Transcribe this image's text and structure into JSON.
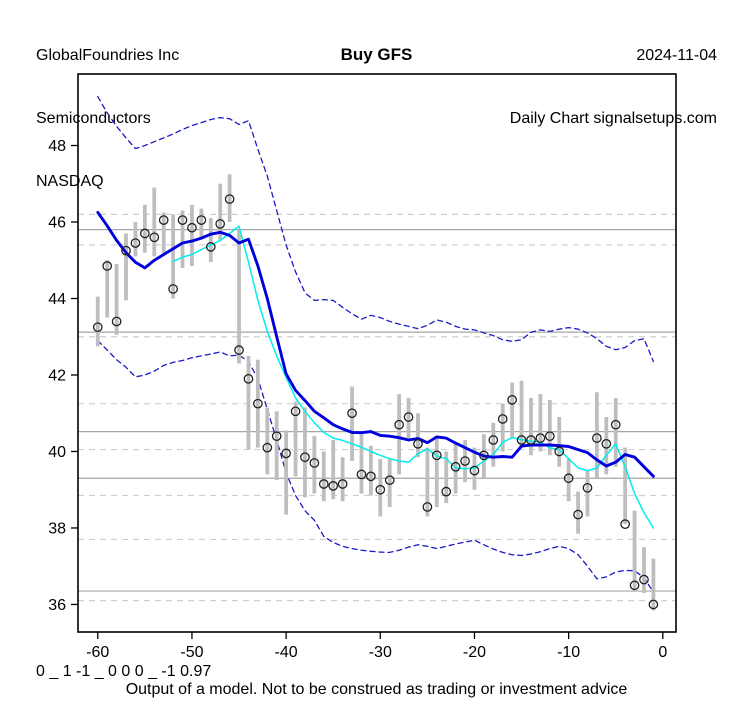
{
  "header": {
    "company": "GlobalFoundries Inc",
    "sector": "Semiconductors",
    "exchange": "NASDAQ",
    "date": "2024-11-04",
    "chart_label": "Daily Chart signalsetups.com"
  },
  "title": "Buy GFS",
  "footer": {
    "model_output": "0 _ 1 -1 _ 0 0 0 _ -1 0.97",
    "disclaimer": "Output of a model. Not to be construed as trading or investment advice"
  },
  "colors": {
    "bar": "#bebebe",
    "marker_ring": "#1f1f1f",
    "slow_ma": "#0000dd",
    "fast_ma": "#00eeee",
    "band": "#1b1bc4",
    "grid_solid": "#a6a6a6",
    "grid_dashed": "#cfcfcf",
    "frame": "#000000",
    "text": "#000000"
  },
  "chart_data": {
    "type": "bar",
    "subtype": "high-low price bars with close markers, moving averages and envelope bands",
    "title": "Buy GFS",
    "xlabel": "",
    "ylabel": "",
    "x_axis": {
      "min": -62.1,
      "max": 1.4,
      "ticks": [
        -60,
        -50,
        -40,
        -30,
        -20,
        -10,
        0
      ]
    },
    "y_axis": {
      "min": 35.28,
      "max": 49.87,
      "ticks": [
        36,
        38,
        40,
        42,
        44,
        46,
        48
      ]
    },
    "levels": {
      "solid": [
        45.8,
        43.12,
        40.52,
        39.3,
        36.35
      ],
      "dashed": [
        46.2,
        45.4,
        43.0,
        41.25,
        40.05,
        38.85,
        37.7,
        36.1
      ]
    },
    "bars": {
      "t0": -60,
      "high": [
        44.05,
        45.0,
        44.9,
        45.7,
        46.0,
        46.45,
        46.9,
        46.25,
        46.2,
        46.3,
        46.45,
        46.35,
        46.1,
        47.0,
        47.25,
        45.8,
        42.5,
        42.4,
        41.15,
        41.05,
        40.55,
        41.3,
        41.15,
        40.4,
        40.0,
        40.3,
        39.85,
        41.7,
        40.45,
        40.15,
        39.8,
        39.8,
        41.5,
        41.4,
        41.0,
        40.1,
        40.35,
        40.0,
        40.2,
        40.3,
        40.1,
        40.45,
        40.75,
        41.25,
        41.8,
        41.85,
        41.4,
        41.5,
        41.35,
        40.9,
        39.8,
        38.95,
        39.5,
        41.55,
        40.9,
        41.4,
        40.1,
        38.45,
        37.5,
        37.2
      ],
      "low": [
        42.75,
        43.5,
        43.05,
        43.95,
        45.1,
        45.2,
        45.1,
        45.2,
        44.0,
        44.8,
        44.85,
        45.55,
        44.95,
        45.5,
        46.0,
        42.3,
        40.05,
        40.1,
        39.4,
        39.25,
        38.35,
        39.35,
        38.8,
        38.9,
        38.7,
        38.75,
        38.7,
        39.75,
        38.9,
        38.85,
        38.3,
        38.55,
        39.4,
        40.3,
        39.85,
        38.3,
        38.55,
        38.65,
        38.9,
        39.2,
        39.0,
        39.3,
        39.6,
        40.0,
        40.35,
        40.1,
        39.9,
        40.0,
        39.9,
        39.6,
        38.7,
        37.85,
        38.3,
        39.3,
        39.4,
        39.6,
        38.1,
        36.4,
        36.3,
        35.85
      ],
      "close": [
        43.25,
        44.85,
        43.4,
        45.25,
        45.45,
        45.7,
        45.6,
        46.05,
        44.25,
        46.05,
        45.85,
        46.05,
        45.35,
        45.95,
        46.6,
        42.65,
        41.9,
        41.25,
        40.1,
        40.4,
        39.95,
        41.05,
        39.85,
        39.7,
        39.15,
        39.1,
        39.15,
        41.0,
        39.4,
        39.35,
        39.0,
        39.25,
        40.7,
        40.9,
        40.2,
        38.55,
        39.9,
        38.95,
        39.6,
        39.75,
        39.5,
        39.9,
        40.3,
        40.85,
        41.35,
        40.3,
        40.3,
        40.35,
        40.4,
        40.0,
        39.3,
        38.35,
        39.05,
        40.35,
        40.2,
        40.7,
        38.1,
        36.5,
        36.65,
        36.0
      ]
    },
    "series": [
      {
        "name": "upper-band",
        "style": "dashed",
        "t0": -60,
        "values": [
          49.28,
          48.85,
          48.5,
          48.2,
          47.92,
          48.0,
          48.1,
          48.2,
          48.3,
          48.42,
          48.52,
          48.6,
          48.68,
          48.73,
          48.7,
          48.55,
          48.65,
          47.9,
          47.2,
          46.3,
          45.4,
          44.7,
          44.15,
          43.95,
          43.97,
          43.95,
          43.77,
          43.6,
          43.46,
          43.56,
          43.5,
          43.4,
          43.33,
          43.27,
          43.21,
          43.3,
          43.44,
          43.38,
          43.27,
          43.2,
          43.18,
          43.1,
          43.03,
          42.92,
          42.88,
          42.92,
          43.12,
          43.18,
          43.14,
          43.2,
          43.24,
          43.2,
          43.1,
          42.95,
          42.75,
          42.66,
          42.72,
          42.9,
          42.95,
          42.35
        ]
      },
      {
        "name": "lower-band",
        "style": "dashed",
        "t0": -60,
        "values": [
          42.9,
          42.65,
          42.4,
          42.2,
          41.95,
          42.0,
          42.1,
          42.25,
          42.33,
          42.38,
          42.45,
          42.5,
          42.55,
          42.6,
          42.5,
          42.52,
          42.35,
          41.9,
          41.1,
          40.3,
          39.45,
          38.85,
          38.45,
          38.2,
          37.78,
          37.62,
          37.52,
          37.46,
          37.42,
          37.39,
          37.37,
          37.36,
          37.42,
          37.5,
          37.56,
          37.52,
          37.46,
          37.52,
          37.58,
          37.63,
          37.68,
          37.56,
          37.45,
          37.36,
          37.3,
          37.28,
          37.32,
          37.38,
          37.46,
          37.52,
          37.46,
          37.3,
          37.0,
          36.67,
          36.72,
          36.85,
          36.89,
          36.88,
          36.7,
          36.32
        ]
      },
      {
        "name": "fast-ma",
        "style": "solid-thin",
        "t0": -52,
        "values": [
          44.97,
          45.08,
          45.15,
          45.28,
          45.4,
          45.52,
          45.7,
          45.89,
          44.95,
          43.95,
          43.14,
          42.5,
          41.94,
          41.4,
          41.05,
          40.75,
          40.5,
          40.35,
          40.29,
          40.2,
          40.11,
          40.0,
          39.9,
          39.81,
          39.75,
          39.72,
          39.94,
          40.07,
          39.88,
          39.81,
          39.57,
          39.55,
          39.57,
          39.75,
          39.92,
          40.24,
          40.36,
          40.31,
          40.27,
          40.24,
          40.1,
          40.05,
          39.81,
          39.57,
          39.5,
          39.57,
          39.9,
          40.2,
          39.6,
          38.9,
          38.4,
          38.0
        ]
      },
      {
        "name": "slow-ma",
        "style": "solid-thick",
        "t0": -60,
        "values": [
          46.25,
          45.9,
          45.52,
          45.2,
          44.95,
          44.8,
          45.0,
          45.15,
          45.3,
          45.45,
          45.5,
          45.58,
          45.68,
          45.73,
          45.65,
          45.45,
          45.55,
          44.85,
          44.0,
          43.0,
          42.03,
          41.6,
          41.33,
          41.05,
          40.88,
          40.7,
          40.59,
          40.5,
          40.49,
          40.52,
          40.42,
          40.4,
          40.36,
          40.3,
          40.34,
          40.23,
          40.38,
          40.35,
          40.22,
          40.1,
          39.98,
          39.88,
          39.85,
          39.87,
          39.85,
          40.14,
          40.17,
          40.17,
          40.17,
          40.15,
          40.13,
          40.05,
          39.97,
          39.78,
          39.62,
          39.72,
          39.92,
          39.85,
          39.6,
          39.35
        ]
      }
    ],
    "grid": "horizontal support/resistance lines only",
    "legend": "none"
  }
}
